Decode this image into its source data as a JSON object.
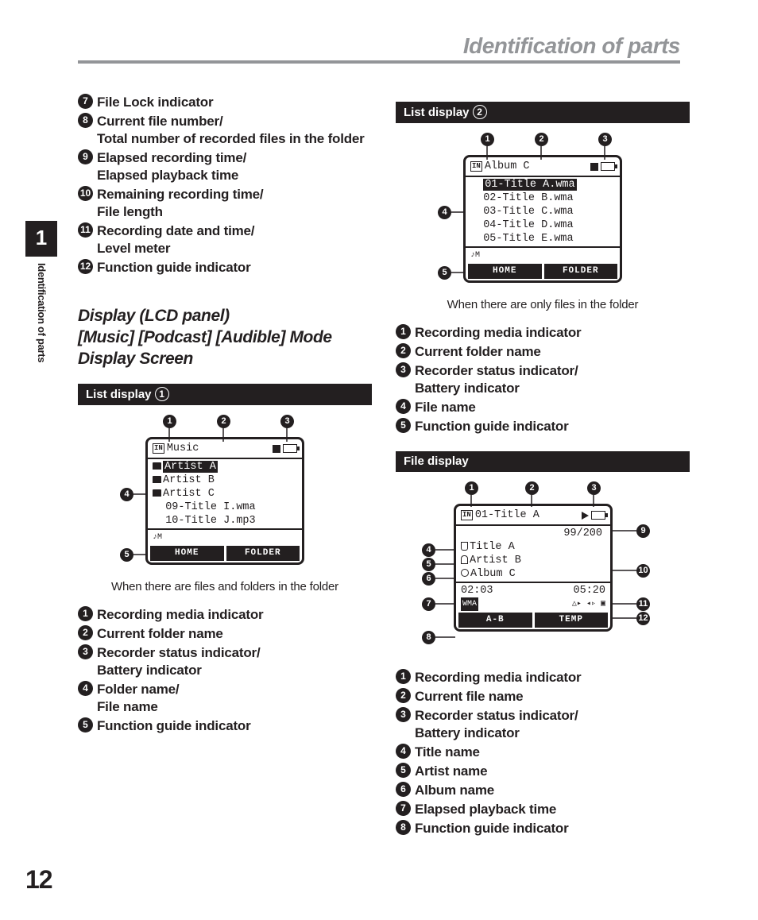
{
  "page": {
    "title": "Identification of parts",
    "chapter_num": "1",
    "side_label": "Identification of parts",
    "page_num": "12"
  },
  "left": {
    "cont_list": [
      {
        "n": "7",
        "t": "File Lock indicator"
      },
      {
        "n": "8",
        "t": "Current file number/\nTotal number of recorded files in the folder"
      },
      {
        "n": "9",
        "t": "Elapsed recording time/\nElapsed playback time"
      },
      {
        "n": "10",
        "t": "Remaining recording time/\nFile length"
      },
      {
        "n": "11",
        "t": "Recording date and time/\nLevel meter"
      },
      {
        "n": "12",
        "t": "Function guide indicator"
      }
    ],
    "section_title": "Display (LCD panel)\n[Music] [Podcast] [Audible] Mode\nDisplay Screen",
    "bar1_label": "List display",
    "bar1_num": "1",
    "lcd1": {
      "title": "Music",
      "rows": [
        "Artist A",
        "Artist B",
        "Artist C",
        "09-Title I.wma",
        "10-Title J.mp3"
      ],
      "sk1": "HOME",
      "sk2": "FOLDER"
    },
    "caption1": "When there are files and folders in the folder",
    "list1": [
      {
        "n": "1",
        "t": "Recording media indicator"
      },
      {
        "n": "2",
        "t": "Current folder name"
      },
      {
        "n": "3",
        "t": "Recorder status indicator/\nBattery indicator"
      },
      {
        "n": "4",
        "t": "Folder name/\nFile name"
      },
      {
        "n": "5",
        "t": "Function guide indicator"
      }
    ]
  },
  "right": {
    "bar2_label": "List display",
    "bar2_num": "2",
    "lcd2": {
      "title": "Album C",
      "rows": [
        "01-Title A.wma",
        "02-Title B.wma",
        "03-Title C.wma",
        "04-Title D.wma",
        "05-Title E.wma"
      ],
      "sk1": "HOME",
      "sk2": "FOLDER"
    },
    "caption2": "When there are only files in the folder",
    "list2": [
      {
        "n": "1",
        "t": "Recording media indicator"
      },
      {
        "n": "2",
        "t": "Current folder name"
      },
      {
        "n": "3",
        "t": "Recorder status indicator/\nBattery indicator"
      },
      {
        "n": "4",
        "t": "File name"
      },
      {
        "n": "5",
        "t": "Function guide indicator"
      }
    ],
    "bar3_label": "File display",
    "lcd3": {
      "title": "01-Title A",
      "counter": "99/200",
      "title_name": "Title A",
      "artist": "Artist B",
      "album": "Album C",
      "elapsed": "02:03",
      "remain": "05:20",
      "fmt": "WMA",
      "sk1": "A-B",
      "sk2": "TEMP"
    },
    "list3": [
      {
        "n": "1",
        "t": "Recording media indicator"
      },
      {
        "n": "2",
        "t": "Current file name"
      },
      {
        "n": "3",
        "t": "Recorder status indicator/\nBattery indicator"
      },
      {
        "n": "4",
        "t": "Title name"
      },
      {
        "n": "5",
        "t": "Artist name"
      },
      {
        "n": "6",
        "t": "Album name"
      },
      {
        "n": "7",
        "t": "Elapsed playback time"
      },
      {
        "n": "8",
        "t": "Function guide indicator"
      }
    ]
  }
}
